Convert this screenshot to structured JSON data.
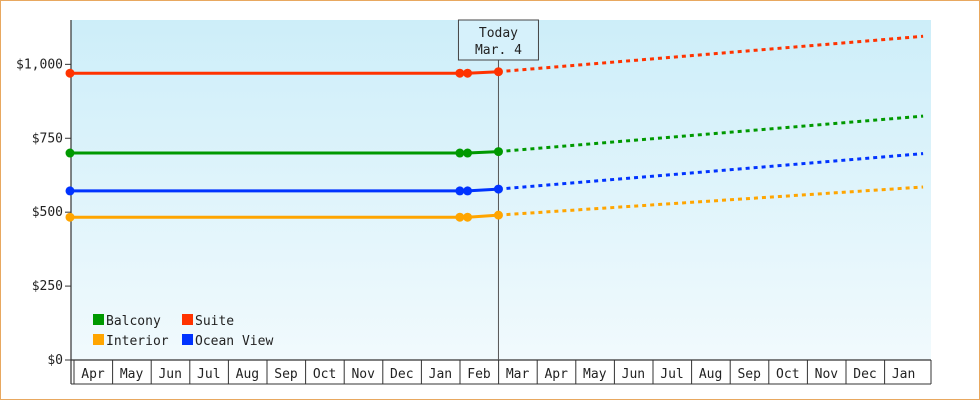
{
  "chart_data": {
    "type": "line",
    "y_ticks": [
      "$0",
      "$250",
      "$500",
      "$750",
      "$1,000"
    ],
    "ylim": [
      0,
      1150
    ],
    "x_ticks": [
      "Apr",
      "May",
      "Jun",
      "Jul",
      "Aug",
      "Sep",
      "Oct",
      "Nov",
      "Dec",
      "Jan",
      "Feb",
      "Mar",
      "Apr",
      "May",
      "Jun",
      "Jul",
      "Aug",
      "Sep",
      "Oct",
      "Nov",
      "Dec",
      "Jan"
    ],
    "today_marker": {
      "line1": "Today",
      "line2": "Mar. 4",
      "x": 11.1
    },
    "series": [
      {
        "name": "Suite",
        "color": "#ff3300",
        "actual": [
          [
            0,
            970
          ],
          [
            10.1,
            970
          ],
          [
            10.3,
            970
          ],
          [
            11.1,
            975
          ]
        ],
        "forecast": [
          [
            11.1,
            975
          ],
          [
            22.1,
            1095
          ]
        ]
      },
      {
        "name": "Balcony",
        "color": "#009900",
        "actual": [
          [
            0,
            700
          ],
          [
            10.1,
            700
          ],
          [
            10.3,
            700
          ],
          [
            11.1,
            705
          ]
        ],
        "forecast": [
          [
            11.1,
            705
          ],
          [
            22.1,
            825
          ]
        ]
      },
      {
        "name": "Ocean View",
        "color": "#0033ff",
        "actual": [
          [
            0,
            572
          ],
          [
            10.1,
            572
          ],
          [
            10.3,
            572
          ],
          [
            11.1,
            578
          ]
        ],
        "forecast": [
          [
            11.1,
            578
          ],
          [
            22.1,
            698
          ]
        ]
      },
      {
        "name": "Interior",
        "color": "#ffa500",
        "actual": [
          [
            0,
            483
          ],
          [
            10.1,
            483
          ],
          [
            10.3,
            483
          ],
          [
            11.1,
            490
          ]
        ],
        "forecast": [
          [
            11.1,
            490
          ],
          [
            22.1,
            585
          ]
        ]
      }
    ],
    "legend": [
      {
        "label": "Balcony",
        "color": "#009900"
      },
      {
        "label": "Suite",
        "color": "#ff3300"
      },
      {
        "label": "Interior",
        "color": "#ffa500"
      },
      {
        "label": "Ocean View",
        "color": "#0033ff"
      }
    ],
    "legend_position": "bottom-left",
    "grid": false
  }
}
